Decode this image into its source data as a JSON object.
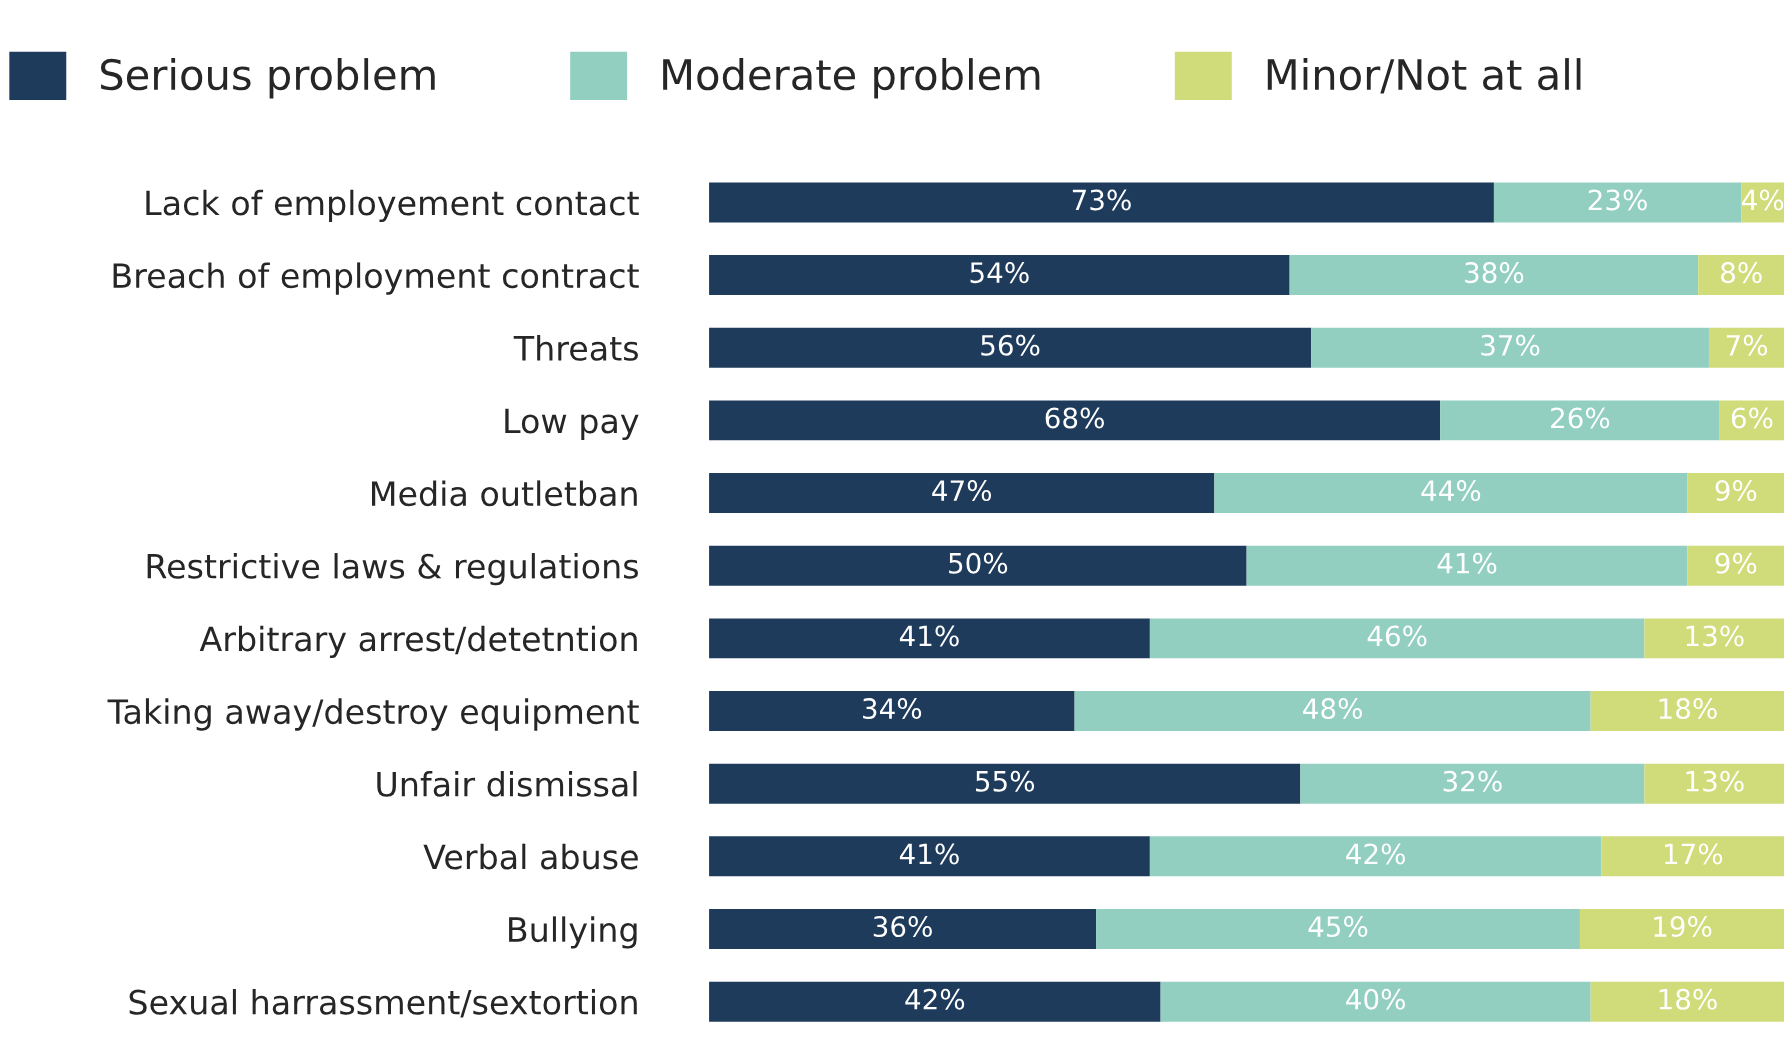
{
  "chart_data": {
    "type": "bar",
    "orientation": "horizontal",
    "stacked": true,
    "legend": "top",
    "grid": false,
    "tick_labels": "y",
    "categories": [
      "Lack of employement contact",
      "Breach of employment contract",
      "Threats",
      "Low pay",
      "Media outletban",
      "Restrictive laws & regulations",
      "Arbitrary arrest/detetntion",
      "Taking away/destroy equipment",
      "Unfair dismissal",
      "Verbal abuse",
      "Bullying",
      "Sexual harrassment/sextortion"
    ],
    "series": [
      {
        "name": "Serious problem",
        "color": "#1f3b5c",
        "values": [
          73,
          54,
          56,
          68,
          47,
          50,
          41,
          34,
          55,
          41,
          36,
          42
        ],
        "value_labels": [
          "73%",
          "54%",
          "56%",
          "68%",
          "47%",
          "50%",
          "41%",
          "34%",
          "55%",
          "41%",
          "36%",
          "42%"
        ]
      },
      {
        "name": "Moderate problem",
        "color": "#92cfc0",
        "values": [
          23,
          38,
          37,
          26,
          44,
          41,
          46,
          48,
          32,
          42,
          45,
          40
        ],
        "value_labels": [
          "23%",
          "38%",
          "37%",
          "26%",
          "44%",
          "41%",
          "46%",
          "48%",
          "32%",
          "42%",
          "45%",
          "40%"
        ]
      },
      {
        "name": "Minor/Not at all",
        "color": "#cfdc79",
        "values": [
          4,
          8,
          7,
          6,
          9,
          9,
          13,
          18,
          13,
          17,
          19,
          18
        ],
        "value_labels": [
          "4%",
          "8%",
          "7%",
          "6%",
          "9%",
          "9%",
          "13%",
          "18%",
          "13%",
          "17%",
          "19%",
          "18%"
        ]
      }
    ]
  }
}
